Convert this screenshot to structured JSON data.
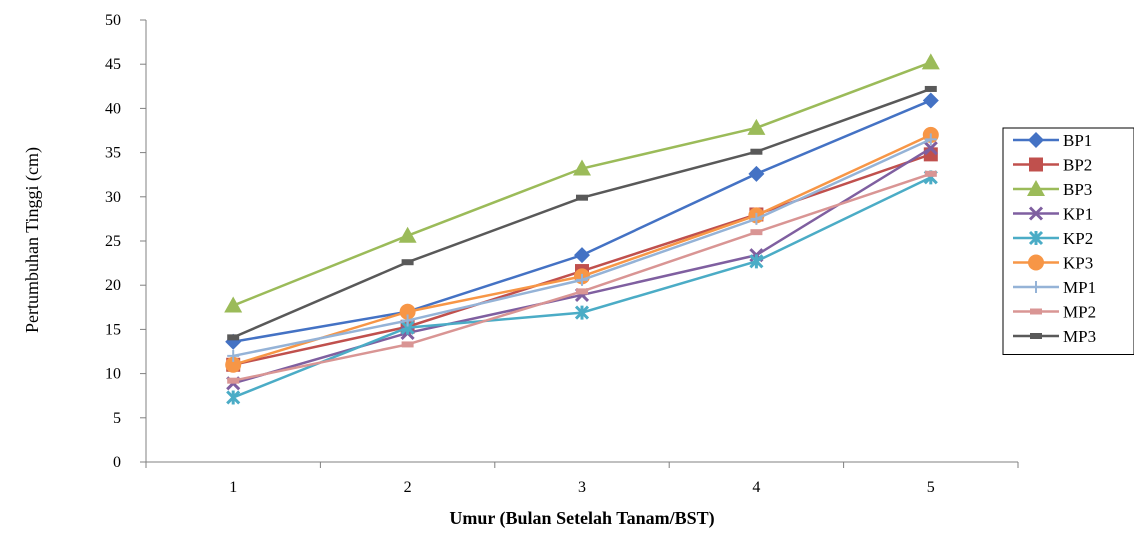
{
  "chart_data": {
    "type": "line",
    "title": "",
    "xlabel": "Umur (Bulan Setelah Tanam/BST)",
    "ylabel": "Pertumbuhan Tinggi (cm)",
    "categories": [
      "1",
      "2",
      "3",
      "4",
      "5"
    ],
    "ylim": [
      0,
      50
    ],
    "yticks": [
      "0",
      "5",
      "10",
      "15",
      "20",
      "25",
      "30",
      "35",
      "40",
      "45",
      "50"
    ],
    "grid": false,
    "legend_position": "right",
    "series": [
      {
        "name": "BP1",
        "color": "#4472C4",
        "marker": "diamond",
        "values": [
          13.6,
          17.0,
          23.4,
          32.6,
          40.9
        ]
      },
      {
        "name": "BP2",
        "color": "#C0504D",
        "marker": "square",
        "values": [
          11.0,
          15.3,
          21.6,
          28.0,
          34.8
        ]
      },
      {
        "name": "BP3",
        "color": "#9BBB59",
        "marker": "triangle",
        "values": [
          17.7,
          25.6,
          33.2,
          37.8,
          45.2
        ]
      },
      {
        "name": "KP1",
        "color": "#7F5FA0",
        "marker": "x",
        "values": [
          8.9,
          14.6,
          18.9,
          23.4,
          35.5
        ]
      },
      {
        "name": "KP2",
        "color": "#4BACC6",
        "marker": "star",
        "values": [
          7.3,
          15.2,
          16.9,
          22.7,
          32.2
        ]
      },
      {
        "name": "KP3",
        "color": "#F79646",
        "marker": "circle",
        "values": [
          11.0,
          17.0,
          21.0,
          27.9,
          37.0
        ]
      },
      {
        "name": "MP1",
        "color": "#95B3D7",
        "marker": "plus",
        "values": [
          12.0,
          16.0,
          20.6,
          27.5,
          36.5
        ]
      },
      {
        "name": "MP2",
        "color": "#D99594",
        "marker": "dash",
        "values": [
          9.2,
          13.3,
          19.3,
          26.0,
          32.6
        ]
      },
      {
        "name": "MP3",
        "color": "#595959",
        "marker": "dash",
        "values": [
          14.1,
          22.6,
          29.9,
          35.1,
          42.2
        ]
      }
    ]
  }
}
